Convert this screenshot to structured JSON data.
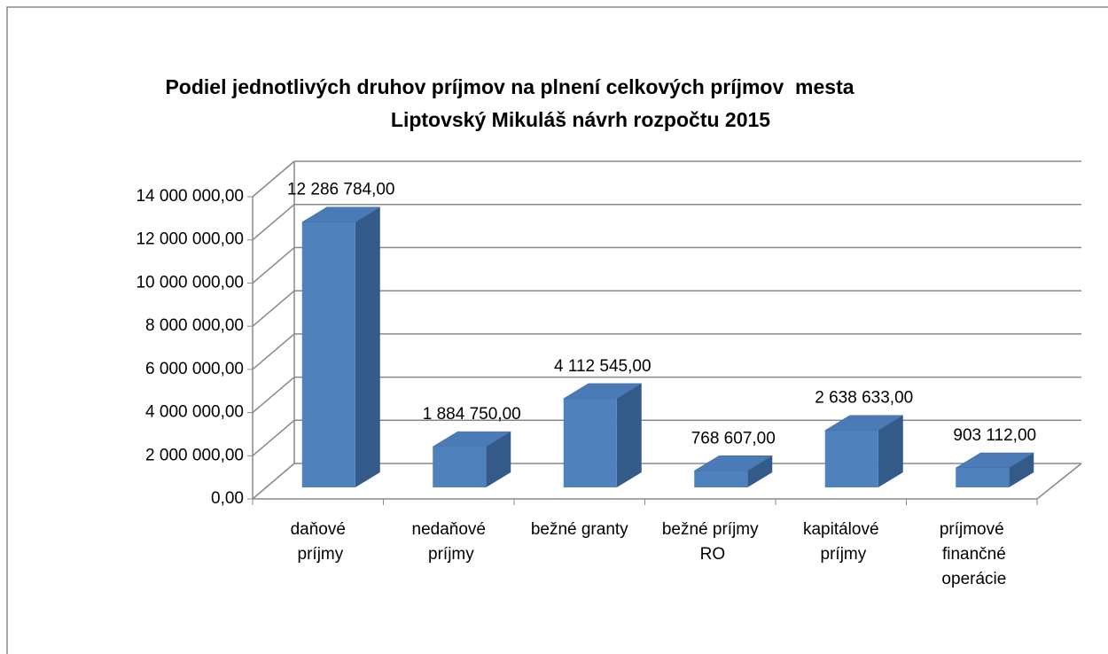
{
  "chart_data": {
    "type": "bar3d",
    "title": [
      "Podiel jednotlivých druhov príjmov na plnení celkových príjmov  mesta",
      "Liptovský Mikuláš návrh rozpočtu 2015"
    ],
    "categories": [
      "daňové príjmy",
      "nedaňové príjmy",
      "bežné granty",
      "bežné príjmy RO",
      "kapitálové príjmy",
      "príjmové finančné operácie"
    ],
    "values": [
      12286784,
      1884750,
      4112545,
      768607,
      2638633,
      903112
    ],
    "value_labels": [
      "12 286 784,00",
      "1 884 750,00",
      "4 112 545,00",
      "768 607,00",
      "2 638 633,00",
      "903 112,00"
    ],
    "color": "#4f81bd",
    "ylim": [
      0,
      14000000
    ],
    "yticks": [
      {
        "value": 0,
        "label": "0,00"
      },
      {
        "value": 2000000,
        "label": "2 000 000,00"
      },
      {
        "value": 4000000,
        "label": "4 000 000,00"
      },
      {
        "value": 6000000,
        "label": "6 000 000,00"
      },
      {
        "value": 8000000,
        "label": "8 000 000,00"
      },
      {
        "value": 10000000,
        "label": "10 000 000,00"
      },
      {
        "value": 12000000,
        "label": "12 000 000,00"
      },
      {
        "value": 14000000,
        "label": "14 000 000,00"
      }
    ],
    "grid": true
  }
}
